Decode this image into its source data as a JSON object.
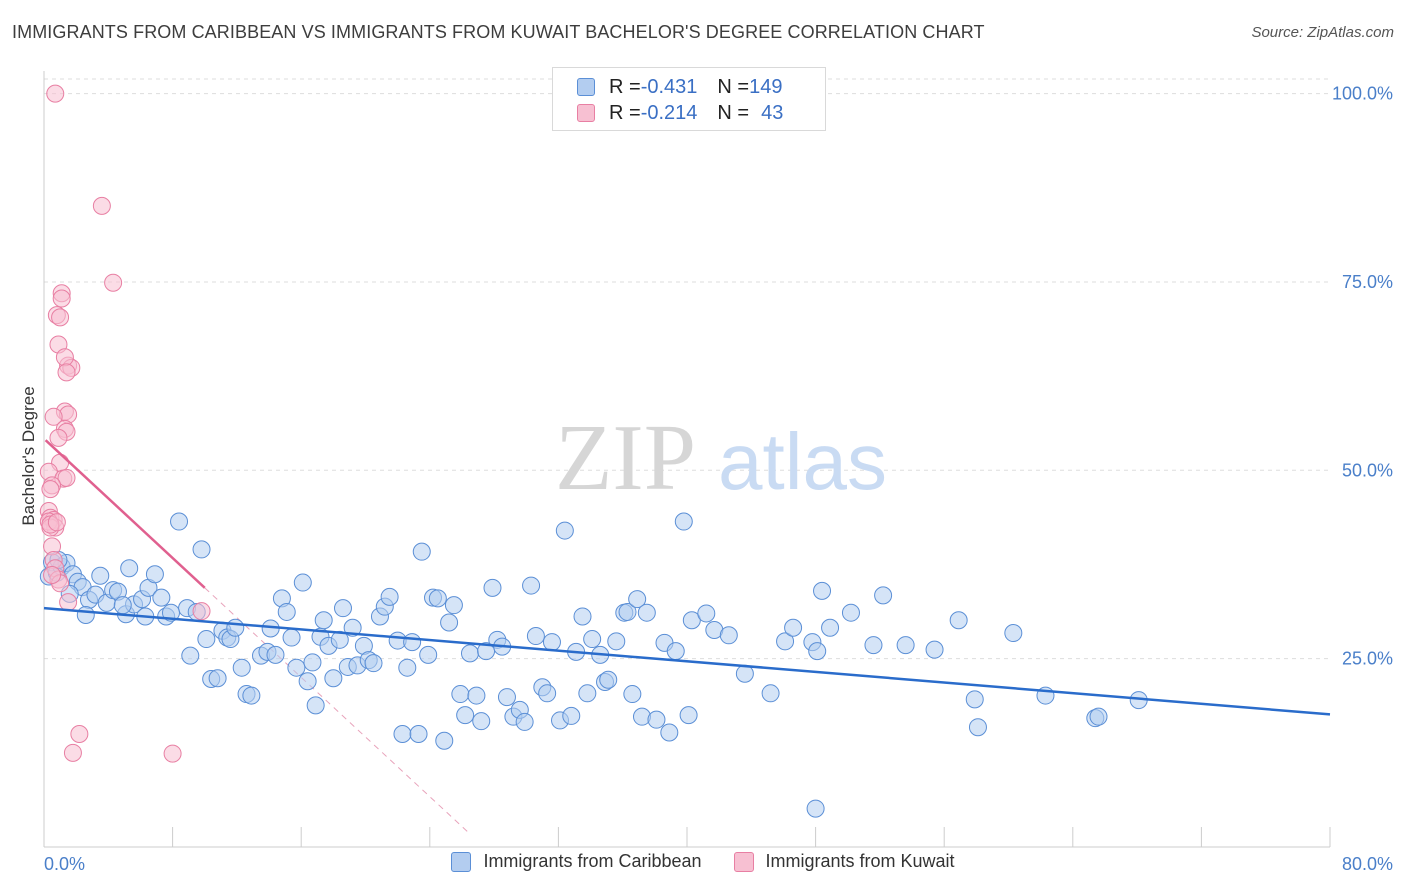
{
  "title": "IMMIGRANTS FROM CARIBBEAN VS IMMIGRANTS FROM KUWAIT BACHELOR'S DEGREE CORRELATION CHART",
  "source": "Source: ZipAtlas.com",
  "watermark": {
    "zip": "ZIP",
    "atlas": "atlas"
  },
  "legend_top": {
    "rows": [
      {
        "r_label": "R = ",
        "r_value": "-0.431",
        "n_label": "N = ",
        "n_value": "149"
      },
      {
        "r_label": "R = ",
        "r_value": "-0.214",
        "n_label": "N = ",
        "n_value": "43"
      }
    ]
  },
  "colors": {
    "caribbean_fill": "#b3cdf0",
    "caribbean_stroke": "#5b8fd6",
    "caribbean_line": "#2a6ccb",
    "kuwait_fill": "#f7c0d2",
    "kuwait_stroke": "#e87fa3",
    "kuwait_line": "#e0608f",
    "tick_text": "#4a7fc9",
    "grid": "#dddddd"
  },
  "chart_data": {
    "type": "scatter",
    "title": "IMMIGRANTS FROM CARIBBEAN VS IMMIGRANTS FROM KUWAIT BACHELOR'S DEGREE CORRELATION CHART",
    "xlabel": "",
    "ylabel": "Bachelor's Degree",
    "xlim": [
      0,
      80
    ],
    "ylim": [
      0,
      103
    ],
    "x_tick_labels": [
      "0.0%",
      "80.0%"
    ],
    "y_ticks": [
      25,
      50,
      75,
      100
    ],
    "y_tick_labels": [
      "25.0%",
      "50.0%",
      "75.0%",
      "100.0%"
    ],
    "grid": true,
    "legend_position": "bottom-center",
    "series": [
      {
        "name": "Immigrants from Caribbean",
        "color": "#5b8fd6",
        "trend": {
          "x": [
            0,
            80
          ],
          "y": [
            31.7,
            17.6
          ]
        },
        "points": [
          [
            0.3,
            35.9
          ],
          [
            0.5,
            37.8
          ],
          [
            0.8,
            36.4
          ],
          [
            1.1,
            37.2
          ],
          [
            1.4,
            37.7
          ],
          [
            1.8,
            36.2
          ],
          [
            2.1,
            35.2
          ],
          [
            2.4,
            34.5
          ],
          [
            2.8,
            32.8
          ],
          [
            3.2,
            33.5
          ],
          [
            3.5,
            36.0
          ],
          [
            3.9,
            32.4
          ],
          [
            4.3,
            34.1
          ],
          [
            4.6,
            33.9
          ],
          [
            5.1,
            30.9
          ],
          [
            5.3,
            37.0
          ],
          [
            5.6,
            32.2
          ],
          [
            6.1,
            32.9
          ],
          [
            6.5,
            34.4
          ],
          [
            6.9,
            36.2
          ],
          [
            7.3,
            33.1
          ],
          [
            7.6,
            30.6
          ],
          [
            8.4,
            43.2
          ],
          [
            8.9,
            31.7
          ],
          [
            9.1,
            25.4
          ],
          [
            9.5,
            31.2
          ],
          [
            9.8,
            39.5
          ],
          [
            10.1,
            27.6
          ],
          [
            10.4,
            22.3
          ],
          [
            10.8,
            22.4
          ],
          [
            11.1,
            28.7
          ],
          [
            11.4,
            27.8
          ],
          [
            11.6,
            27.6
          ],
          [
            11.9,
            29.1
          ],
          [
            12.3,
            23.8
          ],
          [
            12.6,
            20.3
          ],
          [
            12.9,
            20.1
          ],
          [
            13.5,
            25.4
          ],
          [
            13.9,
            25.9
          ],
          [
            14.1,
            29.0
          ],
          [
            14.4,
            25.5
          ],
          [
            14.8,
            33.0
          ],
          [
            15.1,
            31.2
          ],
          [
            15.4,
            27.8
          ],
          [
            15.7,
            23.8
          ],
          [
            16.1,
            35.1
          ],
          [
            16.4,
            22.0
          ],
          [
            16.7,
            24.5
          ],
          [
            16.9,
            18.8
          ],
          [
            17.2,
            27.9
          ],
          [
            17.4,
            30.1
          ],
          [
            17.7,
            26.7
          ],
          [
            18.0,
            22.4
          ],
          [
            18.4,
            27.5
          ],
          [
            18.6,
            31.7
          ],
          [
            18.9,
            23.9
          ],
          [
            19.2,
            29.1
          ],
          [
            19.5,
            24.1
          ],
          [
            19.9,
            26.7
          ],
          [
            20.2,
            24.8
          ],
          [
            20.5,
            24.4
          ],
          [
            20.9,
            30.6
          ],
          [
            21.2,
            31.9
          ],
          [
            21.5,
            33.2
          ],
          [
            22.0,
            27.4
          ],
          [
            22.3,
            15.0
          ],
          [
            22.6,
            23.8
          ],
          [
            22.9,
            27.2
          ],
          [
            23.3,
            15.0
          ],
          [
            23.5,
            39.2
          ],
          [
            23.9,
            25.5
          ],
          [
            24.2,
            33.1
          ],
          [
            24.5,
            33.0
          ],
          [
            24.9,
            14.1
          ],
          [
            25.2,
            29.8
          ],
          [
            25.5,
            32.1
          ],
          [
            25.9,
            20.3
          ],
          [
            26.2,
            17.5
          ],
          [
            26.5,
            25.7
          ],
          [
            26.9,
            20.1
          ],
          [
            27.2,
            16.7
          ],
          [
            27.5,
            26.0
          ],
          [
            27.9,
            34.4
          ],
          [
            28.2,
            27.5
          ],
          [
            28.5,
            26.6
          ],
          [
            28.8,
            19.9
          ],
          [
            29.2,
            17.3
          ],
          [
            29.6,
            18.2
          ],
          [
            29.9,
            16.6
          ],
          [
            30.3,
            34.7
          ],
          [
            30.6,
            28.0
          ],
          [
            31.0,
            21.2
          ],
          [
            31.3,
            20.4
          ],
          [
            31.6,
            27.2
          ],
          [
            32.1,
            16.8
          ],
          [
            32.4,
            42.0
          ],
          [
            32.8,
            17.4
          ],
          [
            33.1,
            25.9
          ],
          [
            33.5,
            30.6
          ],
          [
            33.8,
            20.4
          ],
          [
            34.1,
            27.6
          ],
          [
            34.6,
            25.5
          ],
          [
            34.9,
            21.9
          ],
          [
            35.1,
            22.2
          ],
          [
            35.6,
            27.3
          ],
          [
            36.1,
            31.1
          ],
          [
            36.3,
            31.2
          ],
          [
            36.6,
            20.3
          ],
          [
            36.9,
            32.9
          ],
          [
            37.2,
            17.3
          ],
          [
            37.5,
            31.1
          ],
          [
            38.1,
            16.9
          ],
          [
            38.6,
            27.1
          ],
          [
            38.9,
            15.2
          ],
          [
            39.3,
            26.0
          ],
          [
            39.8,
            43.2
          ],
          [
            40.1,
            17.5
          ],
          [
            40.3,
            30.1
          ],
          [
            41.2,
            31.0
          ],
          [
            41.7,
            28.8
          ],
          [
            42.6,
            28.1
          ],
          [
            43.6,
            23.0
          ],
          [
            45.2,
            20.4
          ],
          [
            46.1,
            27.3
          ],
          [
            46.6,
            29.1
          ],
          [
            47.8,
            27.2
          ],
          [
            48.1,
            26.0
          ],
          [
            48.4,
            34.0
          ],
          [
            48.9,
            29.1
          ],
          [
            48.0,
            5.1
          ],
          [
            50.2,
            31.1
          ],
          [
            51.6,
            26.8
          ],
          [
            52.2,
            33.4
          ],
          [
            53.6,
            26.8
          ],
          [
            55.4,
            26.2
          ],
          [
            56.9,
            30.1
          ],
          [
            57.9,
            19.6
          ],
          [
            58.1,
            15.9
          ],
          [
            60.3,
            28.4
          ],
          [
            62.3,
            20.1
          ],
          [
            65.4,
            17.1
          ],
          [
            65.6,
            17.3
          ],
          [
            68.1,
            19.5
          ],
          [
            0.9,
            38.1
          ],
          [
            1.6,
            33.6
          ],
          [
            2.6,
            30.8
          ],
          [
            4.9,
            32.1
          ],
          [
            6.3,
            30.6
          ],
          [
            7.9,
            31.1
          ]
        ]
      },
      {
        "name": "Immigrants from Kuwait",
        "color": "#e87fa3",
        "trend": {
          "x": [
            0.1,
            10
          ],
          "y": [
            54.0,
            34.4
          ]
        },
        "points": [
          [
            0.7,
            100.0
          ],
          [
            3.6,
            85.1
          ],
          [
            4.3,
            74.9
          ],
          [
            1.1,
            73.5
          ],
          [
            1.1,
            72.8
          ],
          [
            0.8,
            70.6
          ],
          [
            1.0,
            70.3
          ],
          [
            1.5,
            63.9
          ],
          [
            1.7,
            63.6
          ],
          [
            0.9,
            66.7
          ],
          [
            1.3,
            65.0
          ],
          [
            1.4,
            63.0
          ],
          [
            1.3,
            57.8
          ],
          [
            1.5,
            57.4
          ],
          [
            0.6,
            57.1
          ],
          [
            1.3,
            55.5
          ],
          [
            1.4,
            55.1
          ],
          [
            0.9,
            54.3
          ],
          [
            1.0,
            51.0
          ],
          [
            0.3,
            49.8
          ],
          [
            1.2,
            48.9
          ],
          [
            1.4,
            49.0
          ],
          [
            0.5,
            48.0
          ],
          [
            0.4,
            47.5
          ],
          [
            0.3,
            44.6
          ],
          [
            0.4,
            43.7
          ],
          [
            0.6,
            43.4
          ],
          [
            0.7,
            42.4
          ],
          [
            0.3,
            43.2
          ],
          [
            0.4,
            42.4
          ],
          [
            0.5,
            39.9
          ],
          [
            0.6,
            38.1
          ],
          [
            0.7,
            37.0
          ],
          [
            0.9,
            35.5
          ],
          [
            1.0,
            35.0
          ],
          [
            1.5,
            32.5
          ],
          [
            9.8,
            31.3
          ],
          [
            1.8,
            12.5
          ],
          [
            2.2,
            15.0
          ],
          [
            8.0,
            12.4
          ],
          [
            0.4,
            42.8
          ],
          [
            0.5,
            36.1
          ],
          [
            0.8,
            43.1
          ]
        ]
      }
    ]
  }
}
